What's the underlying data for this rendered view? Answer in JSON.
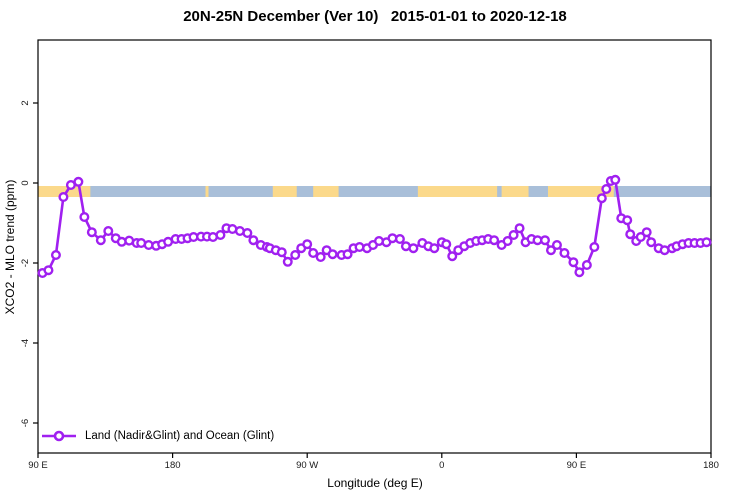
{
  "chart_data": {
    "type": "line",
    "title": "20N-25N December (Ver 10)   2015-01-01 to 2020-12-18",
    "xlabel": "Longitude (deg E)",
    "ylabel": "XCO2 - MLO trend (ppm)",
    "xlim": [
      90,
      540
    ],
    "ylim": [
      -6.75,
      3.575
    ],
    "grid": false,
    "legend_position": "bottom-left-inside",
    "xticks": [
      {
        "value": 90,
        "label": "90 E"
      },
      {
        "value": 180,
        "label": "180"
      },
      {
        "value": 270,
        "label": "90 W"
      },
      {
        "value": 360,
        "label": "0"
      },
      {
        "value": 450,
        "label": "90 E"
      },
      {
        "value": 540,
        "label": "180"
      }
    ],
    "yticks": [
      {
        "value": 2,
        "label": "2"
      },
      {
        "value": 0,
        "label": "0"
      },
      {
        "value": -2,
        "label": "-2"
      },
      {
        "value": -4,
        "label": "-4"
      },
      {
        "value": -6,
        "label": "-6"
      }
    ],
    "colors": {
      "line": "#A020F0",
      "marker_fill": "#ffffff",
      "ocean_band": "#A9BFD9",
      "land_band": "#FBD98B",
      "axis": "#000000",
      "tick_text": "#1a1a1a"
    },
    "map_band": {
      "description": "latitude-band land/ocean strip near y=0",
      "value_top": -0.075,
      "value_bottom": -0.35,
      "ocean_extent": [
        90,
        540
      ],
      "land_segments": [
        [
          90,
          125
        ],
        [
          202,
          204
        ],
        [
          247,
          263
        ],
        [
          274,
          291
        ],
        [
          344,
          397
        ],
        [
          400,
          418
        ],
        [
          431,
          475
        ]
      ]
    },
    "legend": [
      {
        "label": "Land (Nadir&Glint) and Ocean (Glint)",
        "color": "#A020F0",
        "marker": "open-circle"
      }
    ],
    "series": [
      {
        "name": "Land (Nadir&Glint) and Ocean (Glint)",
        "marker": "open-circle",
        "x": [
          93,
          97,
          102,
          107,
          112,
          117,
          121,
          126,
          132,
          137,
          142,
          146,
          151,
          156,
          159,
          164,
          169,
          173,
          177,
          182,
          186,
          190,
          194,
          199,
          203,
          207,
          212,
          216,
          220,
          225,
          230,
          234,
          239,
          243,
          245,
          249,
          253,
          257,
          262,
          266,
          270,
          274,
          279,
          283,
          287,
          293,
          297,
          301,
          305,
          310,
          314,
          318,
          323,
          327,
          332,
          336,
          341,
          347,
          351,
          355,
          360,
          363,
          367,
          371,
          375,
          379,
          383,
          387,
          391,
          395,
          400,
          404,
          408,
          412,
          416,
          420,
          424,
          429,
          433,
          437,
          442,
          448,
          452,
          457,
          462,
          467,
          470,
          473,
          476,
          480,
          484,
          486,
          490,
          493,
          497,
          500,
          505,
          509,
          514,
          517,
          521,
          525,
          529,
          533,
          537
        ],
        "y": [
          -2.25,
          -2.18,
          -1.8,
          -0.35,
          -0.05,
          0.03,
          -0.85,
          -1.23,
          -1.43,
          -1.2,
          -1.38,
          -1.47,
          -1.44,
          -1.5,
          -1.5,
          -1.55,
          -1.57,
          -1.53,
          -1.47,
          -1.4,
          -1.4,
          -1.38,
          -1.35,
          -1.34,
          -1.34,
          -1.35,
          -1.3,
          -1.13,
          -1.15,
          -1.2,
          -1.25,
          -1.43,
          -1.55,
          -1.6,
          -1.63,
          -1.68,
          -1.73,
          -1.97,
          -1.8,
          -1.63,
          -1.53,
          -1.75,
          -1.85,
          -1.68,
          -1.78,
          -1.8,
          -1.78,
          -1.63,
          -1.6,
          -1.63,
          -1.55,
          -1.45,
          -1.48,
          -1.38,
          -1.4,
          -1.58,
          -1.63,
          -1.5,
          -1.58,
          -1.63,
          -1.48,
          -1.53,
          -1.83,
          -1.68,
          -1.58,
          -1.5,
          -1.45,
          -1.43,
          -1.4,
          -1.43,
          -1.55,
          -1.45,
          -1.3,
          -1.13,
          -1.48,
          -1.4,
          -1.43,
          -1.43,
          -1.68,
          -1.55,
          -1.75,
          -1.98,
          -2.23,
          -2.05,
          -1.6,
          -0.38,
          -0.15,
          0.05,
          0.08,
          -0.88,
          -0.93,
          -1.28,
          -1.45,
          -1.35,
          -1.23,
          -1.48,
          -1.63,
          -1.68,
          -1.63,
          -1.58,
          -1.53,
          -1.5,
          -1.5,
          -1.5,
          -1.48
        ]
      }
    ]
  }
}
